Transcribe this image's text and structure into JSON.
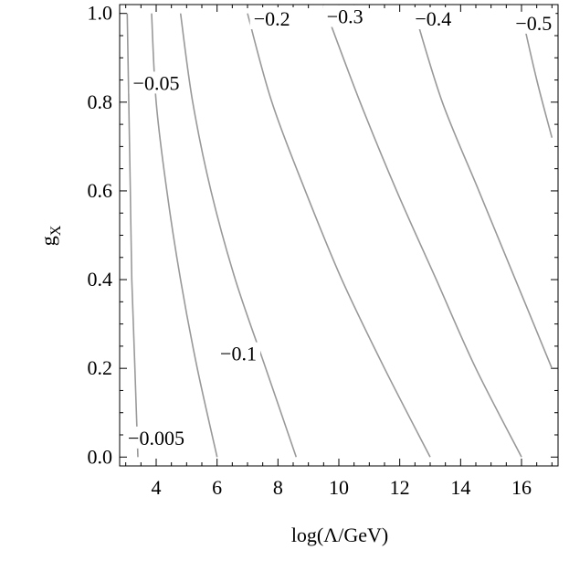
{
  "chart_data": {
    "type": "contour",
    "title": "",
    "xlabel": "log(Λ/GeV)",
    "ylabel_base": "g",
    "ylabel_sub": "X",
    "xlim": [
      2.8,
      17.2
    ],
    "ylim": [
      -0.02,
      1.02
    ],
    "xticks_major": [
      4,
      6,
      8,
      10,
      12,
      14,
      16
    ],
    "yticks_major": [
      0.0,
      0.2,
      0.4,
      0.6,
      0.8,
      1.0
    ],
    "xtick_labels": [
      "4",
      "6",
      "8",
      "10",
      "12",
      "14",
      "16"
    ],
    "ytick_labels": [
      "0.0",
      "0.2",
      "0.4",
      "0.6",
      "0.8",
      "1.0"
    ],
    "line_color": "#999999",
    "contours": [
      {
        "label": "−0.005",
        "label_at": [
          4.0,
          0.04
        ],
        "points": [
          [
            3.4,
            0.0
          ],
          [
            3.3,
            0.2
          ],
          [
            3.2,
            0.4
          ],
          [
            3.15,
            0.6
          ],
          [
            3.1,
            0.8
          ],
          [
            3.05,
            1.0
          ]
        ]
      },
      {
        "label": "−0.05",
        "label_at": [
          4.0,
          0.84
        ],
        "points": [
          [
            6.0,
            0.0
          ],
          [
            5.35,
            0.2
          ],
          [
            4.8,
            0.4
          ],
          [
            4.35,
            0.6
          ],
          [
            4.0,
            0.8
          ],
          [
            3.85,
            1.0
          ]
        ]
      },
      {
        "label": "−0.1",
        "label_at": [
          6.7,
          0.23
        ],
        "points": [
          [
            8.6,
            0.0
          ],
          [
            7.6,
            0.2
          ],
          [
            6.6,
            0.4
          ],
          [
            5.8,
            0.6
          ],
          [
            5.2,
            0.8
          ],
          [
            4.8,
            1.0
          ]
        ]
      },
      {
        "label": "−0.2",
        "label_at": [
          7.8,
          0.985
        ],
        "points": [
          [
            13.0,
            0.0
          ],
          [
            11.5,
            0.2
          ],
          [
            10.1,
            0.4
          ],
          [
            8.9,
            0.6
          ],
          [
            7.8,
            0.8
          ],
          [
            7.0,
            1.0
          ]
        ]
      },
      {
        "label": "−0.3",
        "label_at": [
          10.2,
          0.99
        ],
        "points": [
          [
            16.0,
            0.0
          ],
          [
            14.5,
            0.2
          ],
          [
            13.2,
            0.4
          ],
          [
            11.9,
            0.6
          ],
          [
            10.7,
            0.8
          ],
          [
            9.6,
            1.0
          ]
        ]
      },
      {
        "label": "−0.4",
        "label_at": [
          13.1,
          0.985
        ],
        "points": [
          [
            17.0,
            0.2
          ],
          [
            15.8,
            0.4
          ],
          [
            14.6,
            0.6
          ],
          [
            13.4,
            0.8
          ],
          [
            12.5,
            1.0
          ]
        ]
      },
      {
        "label": "−0.5",
        "label_at": [
          16.4,
          0.975
        ],
        "points": [
          [
            17.0,
            0.72
          ],
          [
            16.5,
            0.85
          ],
          [
            16.0,
            1.0
          ]
        ]
      }
    ]
  }
}
